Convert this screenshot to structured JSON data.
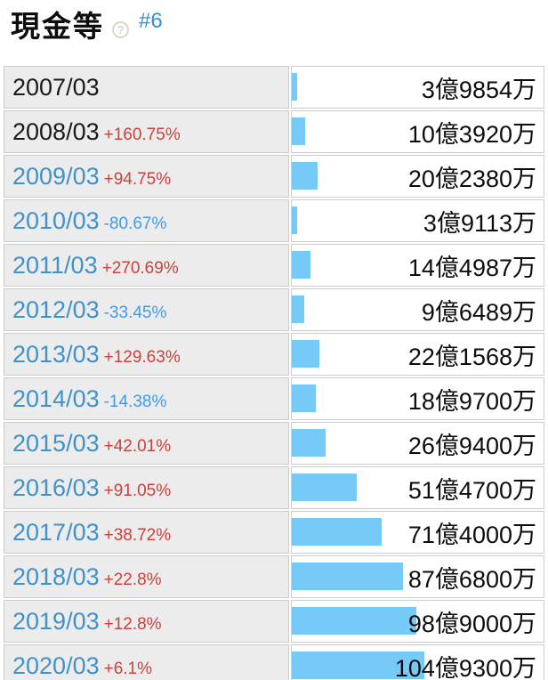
{
  "header": {
    "title": "現金等",
    "help_icon_glyph": "?",
    "anchor": "#6"
  },
  "colors": {
    "bar": "#76caf8",
    "year_link": "#4191cb",
    "year_plain": "#1a1a1a",
    "pct_up": "#c9423d",
    "pct_down": "#3f9bef",
    "row_label_bg": "#ececec",
    "border": "#cccccc",
    "anchor_blue": "#2e8fdd"
  },
  "chart_data": {
    "type": "bar",
    "orientation": "horizontal",
    "title": "現金等",
    "unit": "億円",
    "categories": [
      "2007/03",
      "2008/03",
      "2009/03",
      "2010/03",
      "2011/03",
      "2012/03",
      "2013/03",
      "2014/03",
      "2015/03",
      "2016/03",
      "2017/03",
      "2018/03",
      "2019/03",
      "2020/03"
    ],
    "series": [
      {
        "name": "現金等",
        "values": [
          3.9854,
          10.392,
          20.238,
          3.9113,
          14.4987,
          9.6489,
          22.1568,
          18.97,
          26.94,
          51.47,
          71.4,
          87.68,
          98.9,
          104.93
        ]
      }
    ],
    "value_labels": [
      "3億9854万",
      "10億3920万",
      "20億2380万",
      "3億9113万",
      "14億4987万",
      "9億6489万",
      "22億1568万",
      "18億9700万",
      "26億9400万",
      "51億4700万",
      "71億4000万",
      "87億6800万",
      "98億9000万",
      "104億9300万"
    ],
    "pct_change_labels": [
      "",
      "+160.75%",
      "+94.75%",
      "-80.67%",
      "+270.69%",
      "-33.45%",
      "+129.63%",
      "-14.38%",
      "+42.01%",
      "+91.05%",
      "+38.72%",
      "+22.8%",
      "+12.8%",
      "+6.1%"
    ],
    "xlim": [
      0,
      110
    ],
    "grid": false,
    "legend": false
  },
  "rows": [
    {
      "year": "2007/03",
      "year_is_link": false,
      "pct": "",
      "pct_dir": "",
      "value_label": "3億9854万",
      "value_oku": 3.9854
    },
    {
      "year": "2008/03",
      "year_is_link": false,
      "pct": "+160.75%",
      "pct_dir": "up",
      "value_label": "10億3920万",
      "value_oku": 10.392
    },
    {
      "year": "2009/03",
      "year_is_link": true,
      "pct": "+94.75%",
      "pct_dir": "up",
      "value_label": "20億2380万",
      "value_oku": 20.238
    },
    {
      "year": "2010/03",
      "year_is_link": true,
      "pct": "-80.67%",
      "pct_dir": "down",
      "value_label": "3億9113万",
      "value_oku": 3.9113
    },
    {
      "year": "2011/03",
      "year_is_link": true,
      "pct": "+270.69%",
      "pct_dir": "up",
      "value_label": "14億4987万",
      "value_oku": 14.4987
    },
    {
      "year": "2012/03",
      "year_is_link": true,
      "pct": "-33.45%",
      "pct_dir": "down",
      "value_label": "9億6489万",
      "value_oku": 9.6489
    },
    {
      "year": "2013/03",
      "year_is_link": true,
      "pct": "+129.63%",
      "pct_dir": "up",
      "value_label": "22億1568万",
      "value_oku": 22.1568
    },
    {
      "year": "2014/03",
      "year_is_link": true,
      "pct": "-14.38%",
      "pct_dir": "down",
      "value_label": "18億9700万",
      "value_oku": 18.97
    },
    {
      "year": "2015/03",
      "year_is_link": true,
      "pct": "+42.01%",
      "pct_dir": "up",
      "value_label": "26億9400万",
      "value_oku": 26.94
    },
    {
      "year": "2016/03",
      "year_is_link": true,
      "pct": "+91.05%",
      "pct_dir": "up",
      "value_label": "51億4700万",
      "value_oku": 51.47
    },
    {
      "year": "2017/03",
      "year_is_link": true,
      "pct": "+38.72%",
      "pct_dir": "up",
      "value_label": "71億4000万",
      "value_oku": 71.4
    },
    {
      "year": "2018/03",
      "year_is_link": true,
      "pct": "+22.8%",
      "pct_dir": "up",
      "value_label": "87億6800万",
      "value_oku": 87.68
    },
    {
      "year": "2019/03",
      "year_is_link": true,
      "pct": "+12.8%",
      "pct_dir": "up",
      "value_label": "98億9000万",
      "value_oku": 98.9
    },
    {
      "year": "2020/03",
      "year_is_link": true,
      "pct": "+6.1%",
      "pct_dir": "up",
      "value_label": "104億9300万",
      "value_oku": 104.93
    }
  ]
}
